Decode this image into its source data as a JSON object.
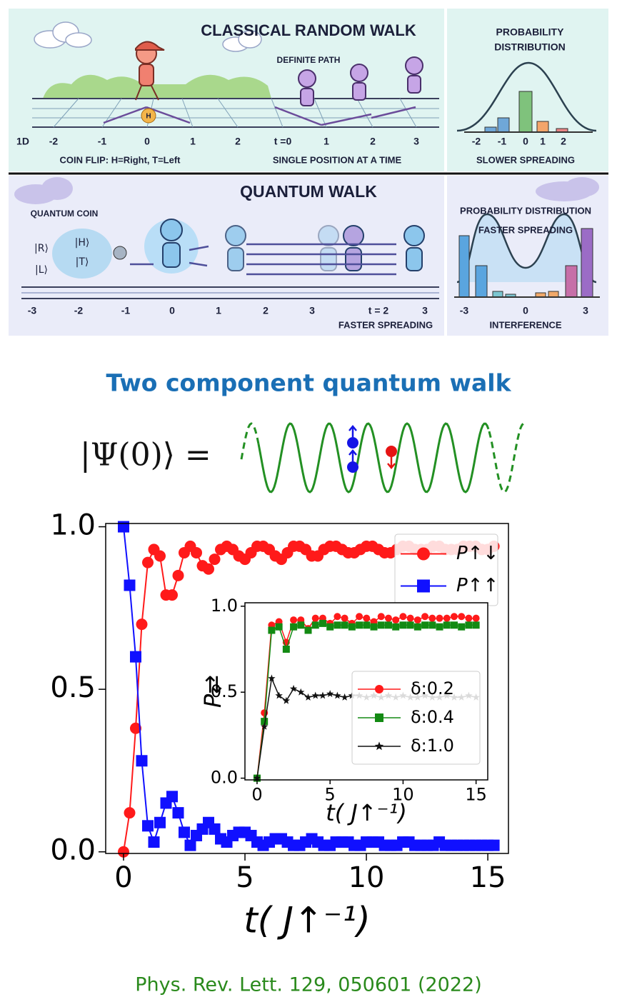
{
  "infographic": {
    "classical": {
      "title": "CLASSICAL RANDOM WALK",
      "path_note": "DEFINITE PATH",
      "dist_title": [
        "PROBABILITY",
        "DISTRIBUTION"
      ],
      "axis_labels": [
        "1D",
        "-2",
        "-1",
        "0",
        "1",
        "2",
        "t =0",
        "1",
        "2",
        "3"
      ],
      "hist_labels": [
        "-2",
        "-1",
        "0",
        "1",
        "2"
      ],
      "captions": [
        "COIN FLIP: H=Right, T=Left",
        "SINGLE POSITION AT A TIME",
        "SLOWER SPREADING"
      ],
      "coin": "H"
    },
    "quantum": {
      "title": "QUANTUM WALK",
      "coin_title": "QUANTUM COIN",
      "states": [
        "|R⟩",
        "|L⟩",
        "|H⟩",
        "|T⟩"
      ],
      "dist_title": "PROBABILITY DISTRIBUTION",
      "dist_note": "FASTER SPREADING",
      "axis_labels": [
        "-3",
        "-2",
        "-1",
        "0",
        "1",
        "2",
        "3",
        "t = 2",
        "3"
      ],
      "hist_labels": [
        "-3",
        "0",
        "3"
      ],
      "captions": [
        "FASTER SPREADING",
        "INTERFERENCE"
      ]
    }
  },
  "heading": "Two component quantum walk",
  "equation": "|Ψ(0)⟩ =",
  "citation": "Phys. Rev. Lett. 129,  050601 (2022)",
  "chart_data": [
    {
      "type": "line",
      "xlabel": "t( J↑⁻¹)",
      "xlim": [
        -0.735,
        15.85
      ],
      "ylim": [
        -0.005,
        1.01
      ],
      "xticks": [
        0,
        5,
        10,
        15
      ],
      "yticks": [
        {
          "value": 0,
          "label": "0.0"
        },
        {
          "value": 0.5,
          "label": "0.5"
        },
        {
          "value": 1,
          "label": "1.0"
        }
      ],
      "legend": "upper right",
      "x": [
        0,
        0.25,
        0.5,
        0.75,
        1,
        1.25,
        1.5,
        1.75,
        2,
        2.25,
        2.5,
        2.75,
        3,
        3.25,
        3.5,
        3.75,
        4,
        4.25,
        4.5,
        4.75,
        5,
        5.25,
        5.5,
        5.75,
        6,
        6.25,
        6.5,
        6.75,
        7,
        7.25,
        7.5,
        7.75,
        8,
        8.25,
        8.5,
        8.75,
        9,
        9.25,
        9.5,
        9.75,
        10,
        10.25,
        10.5,
        10.75,
        11,
        11.25,
        11.5,
        11.75,
        12,
        12.25,
        12.5,
        12.75,
        13,
        13.25,
        13.5,
        13.75,
        14,
        14.25,
        14.5,
        14.75,
        15,
        15.25
      ],
      "series": [
        {
          "name": "P↑↓",
          "color": "#ff1a1a",
          "marker": "circle",
          "values": [
            0,
            0.12,
            0.38,
            0.7,
            0.89,
            0.93,
            0.91,
            0.79,
            0.79,
            0.85,
            0.92,
            0.94,
            0.92,
            0.88,
            0.87,
            0.9,
            0.93,
            0.94,
            0.93,
            0.91,
            0.9,
            0.92,
            0.94,
            0.94,
            0.93,
            0.91,
            0.9,
            0.92,
            0.94,
            0.94,
            0.93,
            0.91,
            0.91,
            0.93,
            0.94,
            0.94,
            0.93,
            0.92,
            0.92,
            0.93,
            0.94,
            0.94,
            0.93,
            0.92,
            0.92,
            0.93,
            0.94,
            0.94,
            0.93,
            0.93,
            0.93,
            0.94,
            0.94,
            0.93,
            0.93,
            0.93,
            0.94,
            0.94,
            0.94,
            0.93,
            0.93,
            0.94
          ]
        },
        {
          "name": "P↑↑",
          "color": "#1010ff",
          "marker": "square",
          "values": [
            1.0,
            0.82,
            0.6,
            0.28,
            0.08,
            0.03,
            0.09,
            0.15,
            0.17,
            0.12,
            0.06,
            0.02,
            0.05,
            0.07,
            0.09,
            0.07,
            0.04,
            0.03,
            0.05,
            0.06,
            0.06,
            0.05,
            0.03,
            0.02,
            0.03,
            0.04,
            0.04,
            0.03,
            0.02,
            0.02,
            0.03,
            0.04,
            0.03,
            0.02,
            0.02,
            0.03,
            0.03,
            0.03,
            0.02,
            0.02,
            0.03,
            0.03,
            0.03,
            0.02,
            0.02,
            0.02,
            0.03,
            0.03,
            0.02,
            0.02,
            0.02,
            0.02,
            0.03,
            0.02,
            0.02,
            0.02,
            0.02,
            0.02,
            0.02,
            0.02,
            0.02,
            0.02
          ]
        }
      ]
    },
    {
      "type": "line",
      "xlabel": "t( J↑⁻¹)",
      "ylabel": "P⇄",
      "xlim": [
        -0.83,
        15.8
      ],
      "ylim": [
        -0.01,
        1.02
      ],
      "xticks": [
        0,
        5,
        10,
        15
      ],
      "yticks": [
        {
          "value": 0,
          "label": "0.0"
        },
        {
          "value": 0.5,
          "label": "0.5"
        },
        {
          "value": 1,
          "label": "1.0"
        }
      ],
      "legend": "center right",
      "x": [
        0,
        0.5,
        1,
        1.5,
        2,
        2.5,
        3,
        3.5,
        4,
        4.5,
        5,
        5.5,
        6,
        6.5,
        7,
        7.5,
        8,
        8.5,
        9,
        9.5,
        10,
        10.5,
        11,
        11.5,
        12,
        12.5,
        13,
        13.5,
        14,
        14.5,
        15
      ],
      "series": [
        {
          "name": "δ:0.2",
          "color": "#ff1a1a",
          "marker": "circle",
          "values": [
            0,
            0.38,
            0.89,
            0.91,
            0.79,
            0.92,
            0.92,
            0.87,
            0.93,
            0.93,
            0.9,
            0.94,
            0.93,
            0.9,
            0.94,
            0.93,
            0.91,
            0.94,
            0.93,
            0.92,
            0.94,
            0.93,
            0.92,
            0.94,
            0.93,
            0.93,
            0.93,
            0.94,
            0.94,
            0.93,
            0.93
          ]
        },
        {
          "name": "δ:0.4",
          "color": "#138a13",
          "marker": "square",
          "values": [
            0,
            0.33,
            0.86,
            0.88,
            0.75,
            0.88,
            0.89,
            0.86,
            0.89,
            0.9,
            0.88,
            0.89,
            0.89,
            0.88,
            0.89,
            0.89,
            0.88,
            0.89,
            0.89,
            0.88,
            0.89,
            0.89,
            0.88,
            0.89,
            0.89,
            0.88,
            0.89,
            0.89,
            0.88,
            0.89,
            0.89
          ]
        },
        {
          "name": "δ:1.0",
          "color": "#111111",
          "marker": "star",
          "values": [
            0,
            0.3,
            0.58,
            0.48,
            0.45,
            0.52,
            0.5,
            0.47,
            0.48,
            0.48,
            0.49,
            0.48,
            0.47,
            0.48,
            0.48,
            0.47,
            0.48,
            0.47,
            0.48,
            0.47,
            0.48,
            0.47,
            0.47,
            0.48,
            0.47,
            0.47,
            0.48,
            0.47,
            0.47,
            0.48,
            0.47
          ]
        }
      ]
    }
  ]
}
